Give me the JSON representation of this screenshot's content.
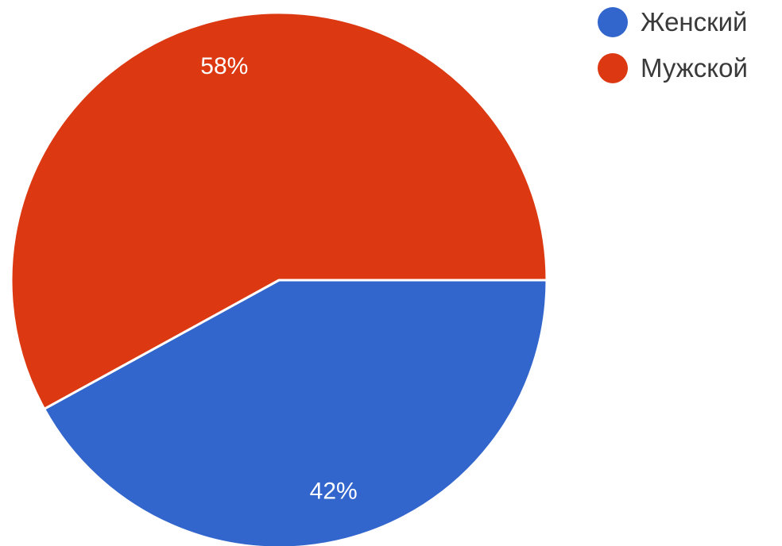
{
  "chart_data": {
    "type": "pie",
    "title": "",
    "start_angle_deg": 90,
    "direction": "clockwise",
    "slices": [
      {
        "label": "Женский",
        "value": 42,
        "value_label": "42%",
        "color": "#3366cc"
      },
      {
        "label": "Мужской",
        "value": 58,
        "value_label": "58%",
        "color": "#dc3912"
      }
    ],
    "legend": {
      "position": "top-right",
      "items": [
        {
          "label": "Женский",
          "color": "#3366cc"
        },
        {
          "label": "Мужской",
          "color": "#dc3912"
        }
      ]
    },
    "slice_separator_color": "#ffffff"
  }
}
